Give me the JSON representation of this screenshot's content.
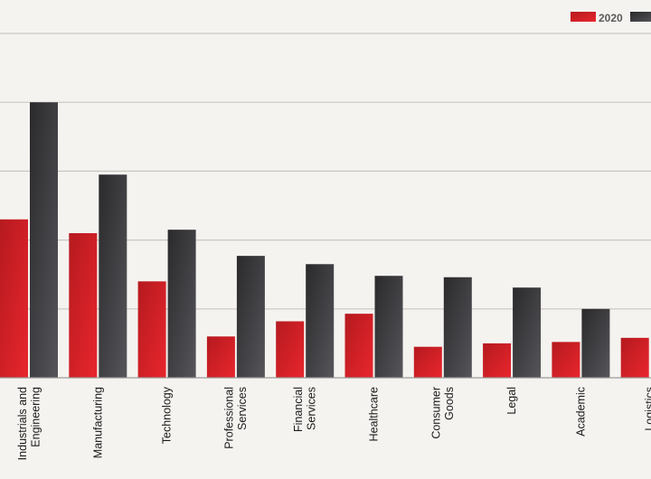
{
  "chart_data": {
    "type": "bar",
    "title": "",
    "xlabel": "",
    "ylabel": "",
    "categories": [
      [
        "Industrials and",
        "Engineering"
      ],
      [
        "Manufacturing"
      ],
      [
        "Technology"
      ],
      [
        "Professional",
        "Services"
      ],
      [
        "Financial",
        "Services"
      ],
      [
        "Healthcare"
      ],
      [
        "Consumer",
        "Goods"
      ],
      [
        "Legal"
      ],
      [
        "Academic"
      ],
      [
        "Logistics"
      ]
    ],
    "series": [
      {
        "name": "2020",
        "color": "#d71f26",
        "values": [
          2.3,
          2.1,
          1.4,
          0.6,
          0.82,
          0.93,
          0.45,
          0.5,
          0.52,
          0.58
        ]
      },
      {
        "name": "",
        "color": "#3c3c3e",
        "values": [
          4.0,
          2.95,
          2.15,
          1.77,
          1.65,
          1.48,
          1.46,
          1.31,
          1.0,
          0.0
        ]
      }
    ],
    "ylim": [
      0,
      5
    ],
    "grid": true,
    "legend": "top-right"
  }
}
